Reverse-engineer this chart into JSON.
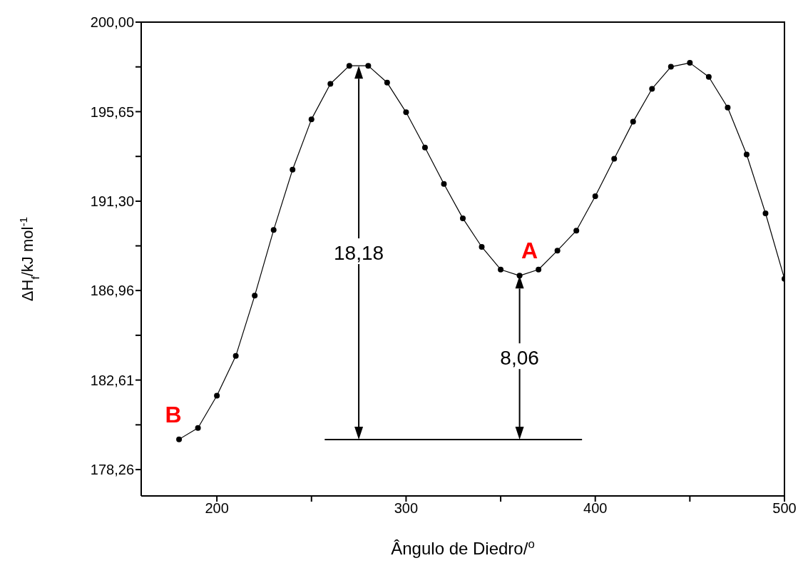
{
  "chart_data": {
    "type": "line",
    "xlabel": "Ângulo de Diedro/$^{o}$",
    "ylabel": "ΔH$_{f}$/kJ mol$^{-1}$",
    "x": [
      180,
      190,
      200,
      210,
      220,
      230,
      240,
      250,
      260,
      270,
      280,
      290,
      300,
      310,
      320,
      330,
      340,
      350,
      360,
      370,
      380,
      390,
      400,
      410,
      420,
      430,
      440,
      450,
      460,
      470,
      480,
      490,
      500
    ],
    "series": [
      {
        "color": "#000000",
        "marker": "circle",
        "values": [
          179.73,
          180.28,
          181.85,
          183.78,
          186.71,
          189.9,
          192.83,
          195.28,
          197.0,
          197.88,
          197.88,
          197.06,
          195.62,
          193.91,
          192.14,
          190.47,
          189.08,
          187.98,
          187.68,
          187.98,
          188.9,
          189.87,
          191.54,
          193.36,
          195.16,
          196.76,
          197.83,
          198.02,
          197.34,
          195.85,
          193.57,
          190.71,
          187.53
        ]
      },
      {
        "type": "line",
        "color": "#000000",
        "marker": "none",
        "x": [
          257,
          393
        ],
        "values": [
          179.72,
          179.72
        ]
      }
    ],
    "xlim": [
      160,
      500
    ],
    "xticks": [
      200,
      {
        "value": 250,
        "label": null
      },
      300,
      {
        "value": 350,
        "label": null
      },
      400,
      {
        "value": 450,
        "label": null
      },
      500
    ],
    "ylim": [
      176.98,
      200
    ],
    "yticks": [
      {
        "value": 178.26,
        "label": "178,26"
      },
      {
        "value": 180.435,
        "label": null
      },
      {
        "value": 182.61,
        "label": "182,61"
      },
      {
        "value": 184.785,
        "label": null
      },
      {
        "value": 186.96,
        "label": "186,96"
      },
      {
        "value": 189.13,
        "label": null
      },
      {
        "value": 191.3,
        "label": "191,30"
      },
      {
        "value": 193.475,
        "label": null
      },
      {
        "value": 195.65,
        "label": "195,65"
      },
      {
        "value": 197.825,
        "label": null
      },
      {
        "value": 200,
        "label": "200,00"
      }
    ],
    "annotations": [
      {
        "text": "B",
        "x": 180,
        "y": 179.73
      },
      {
        "text": "A",
        "x": 360,
        "y": 187.68
      },
      "18,18",
      "8,06"
    ]
  }
}
